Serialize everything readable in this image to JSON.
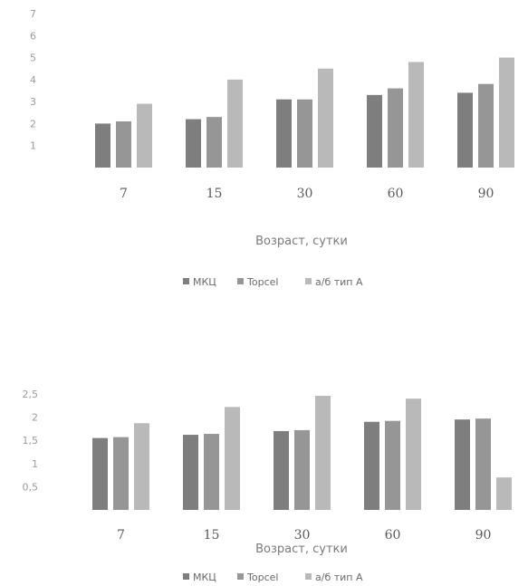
{
  "chart_data": [
    {
      "type": "bar",
      "title": "",
      "xlabel": "Возраст, сутки",
      "ylabel": "",
      "categories": [
        "7",
        "15",
        "30",
        "60",
        "90"
      ],
      "ylim": [
        0,
        7
      ],
      "yticks": [
        "1",
        "2",
        "3",
        "4",
        "5",
        "6",
        "7"
      ],
      "series": [
        {
          "name": "МКЦ",
          "color": "#7e7e7e",
          "values": [
            2.0,
            2.2,
            3.1,
            3.3,
            3.4
          ]
        },
        {
          "name": "Topcel",
          "color": "#969696",
          "values": [
            2.1,
            2.3,
            3.1,
            3.6,
            3.8
          ]
        },
        {
          "name": "а/б тип А",
          "color": "#b9b9b9",
          "values": [
            2.9,
            4.0,
            4.5,
            4.8,
            5.0
          ]
        }
      ],
      "legend_position": "bottom",
      "grid": false
    },
    {
      "type": "bar",
      "title": "",
      "xlabel": "Возраст, сутки",
      "ylabel": "",
      "categories": [
        "7",
        "15",
        "30",
        "60",
        "90"
      ],
      "ylim": [
        0,
        2.5
      ],
      "yticks": [
        "0,5",
        "1",
        "1,5",
        "2",
        "2,5"
      ],
      "series": [
        {
          "name": "МКЦ",
          "color": "#7e7e7e",
          "values": [
            1.55,
            1.62,
            1.7,
            1.9,
            1.95
          ]
        },
        {
          "name": "Topcel",
          "color": "#969696",
          "values": [
            1.57,
            1.64,
            1.72,
            1.92,
            1.97
          ]
        },
        {
          "name": "а/б тип А",
          "color": "#b9b9b9",
          "values": [
            1.87,
            2.22,
            2.46,
            2.4,
            0.7
          ]
        }
      ],
      "legend_position": "bottom",
      "grid": false
    }
  ]
}
